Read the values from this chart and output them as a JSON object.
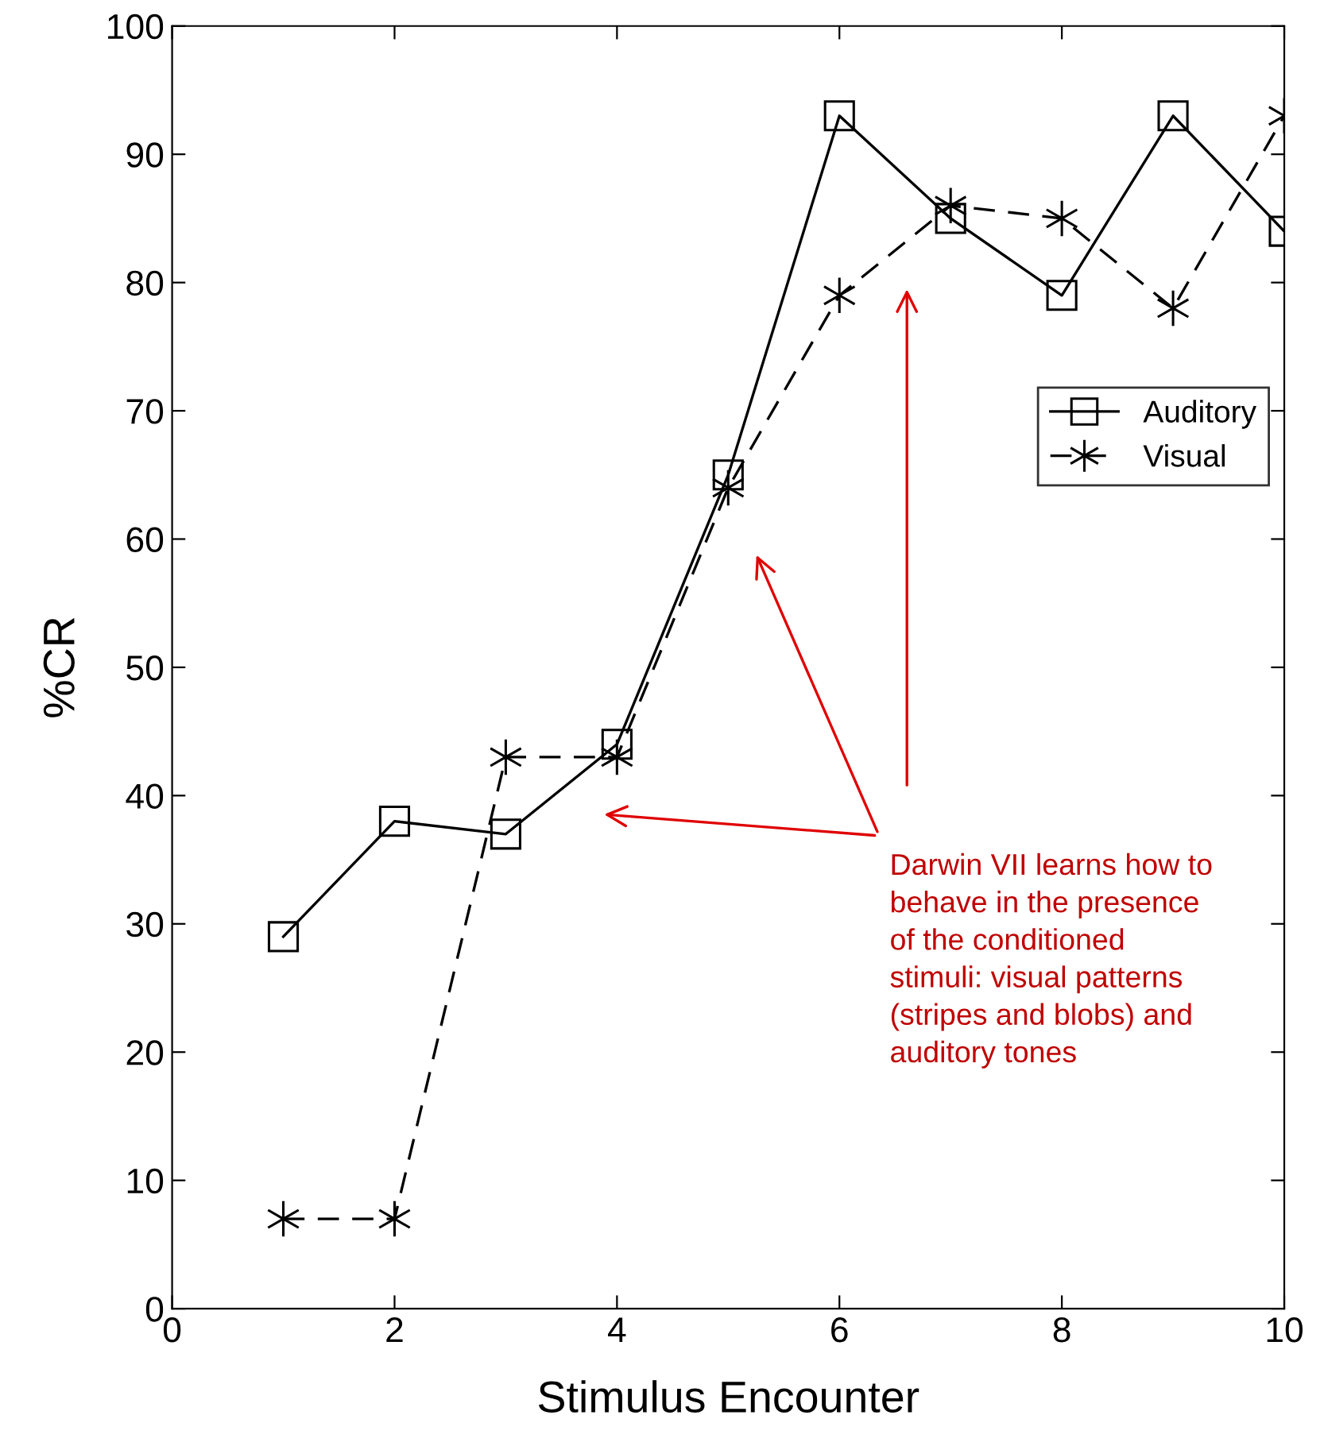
{
  "chart_data": {
    "type": "line",
    "xlabel": "Stimulus Encounter",
    "ylabel": "%CR",
    "x": [
      1,
      2,
      3,
      4,
      5,
      6,
      7,
      8,
      9,
      10
    ],
    "series": [
      {
        "name": "Auditory",
        "color": "#000000",
        "marker": "square",
        "line_style": "solid",
        "values": [
          29,
          38,
          37,
          44,
          65,
          93,
          85,
          79,
          93,
          84
        ]
      },
      {
        "name": "Visual",
        "color": "#000000",
        "marker": "cross",
        "line_style": "dashed",
        "values": [
          7,
          7,
          43,
          43,
          64,
          79,
          86,
          85,
          78,
          93
        ]
      }
    ],
    "xlim": [
      0,
      10
    ],
    "xticks": [
      0,
      2,
      4,
      6,
      8,
      10
    ],
    "ylim": [
      0,
      100
    ],
    "yticks": [
      0,
      10,
      20,
      30,
      40,
      50,
      60,
      70,
      80,
      90,
      100
    ],
    "grid": false,
    "legend": "right",
    "annotations": [
      "Darwin VII learns how to behave in the presence of the conditioned stimuli: visual patterns (stripes and blobs) and auditory tones"
    ]
  }
}
